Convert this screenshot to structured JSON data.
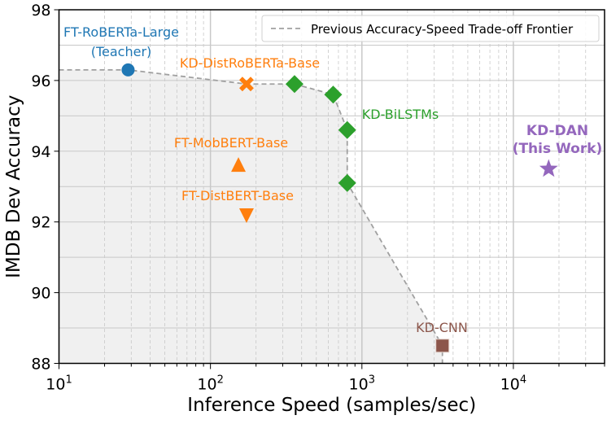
{
  "chart_data": {
    "type": "scatter",
    "title": "",
    "xlabel": "Inference Speed (samples/sec)",
    "ylabel": "IMDB Dev Accuracy",
    "xscale": "log",
    "xlim": [
      10,
      40000
    ],
    "ylim": [
      88,
      98
    ],
    "x_ticks": [
      10,
      100,
      1000,
      10000
    ],
    "x_tick_labels": [
      {
        "base": "10",
        "exp": "1"
      },
      {
        "base": "10",
        "exp": "2"
      },
      {
        "base": "10",
        "exp": "3"
      },
      {
        "base": "10",
        "exp": "4"
      }
    ],
    "y_ticks": [
      88,
      90,
      92,
      94,
      96,
      98
    ],
    "y_tick_labels": [
      "88",
      "90",
      "92",
      "94",
      "96",
      "98"
    ],
    "grid": true,
    "legend": {
      "placement": "top-right",
      "entries": [
        "Previous Accuracy-Speed Trade-off Frontier"
      ],
      "line_color": "#a0a0a0"
    },
    "frontier": {
      "name": "Previous Accuracy-Speed Trade-off Frontier",
      "points": [
        [
          10,
          96.3
        ],
        [
          28.6,
          96.3
        ],
        [
          173,
          95.9
        ],
        [
          359,
          95.9
        ],
        [
          646,
          95.6
        ],
        [
          800,
          94.6
        ],
        [
          800,
          93.1
        ],
        [
          3400,
          88.5
        ],
        [
          3400,
          88
        ]
      ]
    },
    "series": [
      {
        "name": "FT-RoBERTa-Large (Teacher)",
        "label_lines": [
          "FT-RoBERTa-Large",
          "(Teacher)"
        ],
        "color": "#1f77b4",
        "marker": "circle",
        "points": [
          [
            28.6,
            96.3
          ]
        ]
      },
      {
        "name": "KD-DistRoBERTa-Base",
        "label_lines": [
          "KD-DistRoBERTa-Base"
        ],
        "color": "#ff7f0e",
        "marker": "x",
        "points": [
          [
            173,
            95.9
          ]
        ]
      },
      {
        "name": "KD-BiLSTMs",
        "label_lines": [
          "KD-BiLSTMs"
        ],
        "color": "#2ca02c",
        "marker": "diamond",
        "points": [
          [
            359,
            95.9
          ],
          [
            646,
            95.6
          ],
          [
            800,
            94.6
          ],
          [
            800,
            93.1
          ]
        ]
      },
      {
        "name": "FT-MobBERT-Base",
        "label_lines": [
          "FT-MobBERT-Base"
        ],
        "color": "#ff7f0e",
        "marker": "triangle-up",
        "points": [
          [
            153,
            93.6
          ]
        ]
      },
      {
        "name": "FT-DistBERT-Base",
        "label_lines": [
          "FT-DistBERT-Base"
        ],
        "color": "#ff7f0e",
        "marker": "triangle-down",
        "points": [
          [
            173,
            92.2
          ]
        ]
      },
      {
        "name": "KD-CNN",
        "label_lines": [
          "KD-CNN"
        ],
        "color": "#8c564b",
        "marker": "square",
        "points": [
          [
            3400,
            88.5
          ]
        ]
      },
      {
        "name": "KD-DAN (This Work)",
        "label_lines": [
          "KD-DAN",
          "(This Work)"
        ],
        "color": "#9467bd",
        "marker": "star",
        "bold": true,
        "points": [
          [
            17100,
            93.5
          ]
        ]
      }
    ]
  }
}
